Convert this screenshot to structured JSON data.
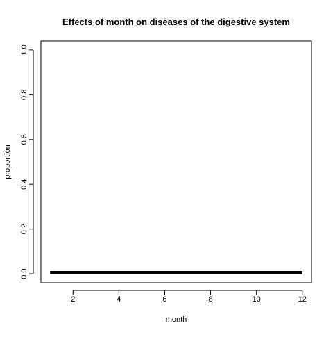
{
  "chart_data": {
    "type": "line",
    "title": "Effects of month on diseases of the digestive system",
    "xlabel": "month",
    "ylabel": "proportion",
    "xlim": [
      0.6,
      12.4
    ],
    "ylim": [
      -0.04,
      1.04
    ],
    "x_ticks": [
      2,
      4,
      6,
      8,
      10,
      12
    ],
    "y_ticks": [
      0.0,
      0.2,
      0.4,
      0.6,
      0.8,
      1.0
    ],
    "x_tick_labels": [
      "2",
      "4",
      "6",
      "8",
      "10",
      "12"
    ],
    "y_tick_labels": [
      "0.0",
      "0.2",
      "0.4",
      "0.6",
      "0.8",
      "1.0"
    ],
    "grid": false,
    "legend": "none",
    "series": [
      {
        "x": [
          1,
          2,
          3,
          4,
          5,
          6,
          7,
          8,
          9,
          10,
          11,
          12
        ],
        "y": [
          0.005,
          0.005,
          0.005,
          0.005,
          0.005,
          0.005,
          0.005,
          0.005,
          0.005,
          0.005,
          0.005,
          0.005
        ],
        "color": "#000000"
      }
    ]
  }
}
